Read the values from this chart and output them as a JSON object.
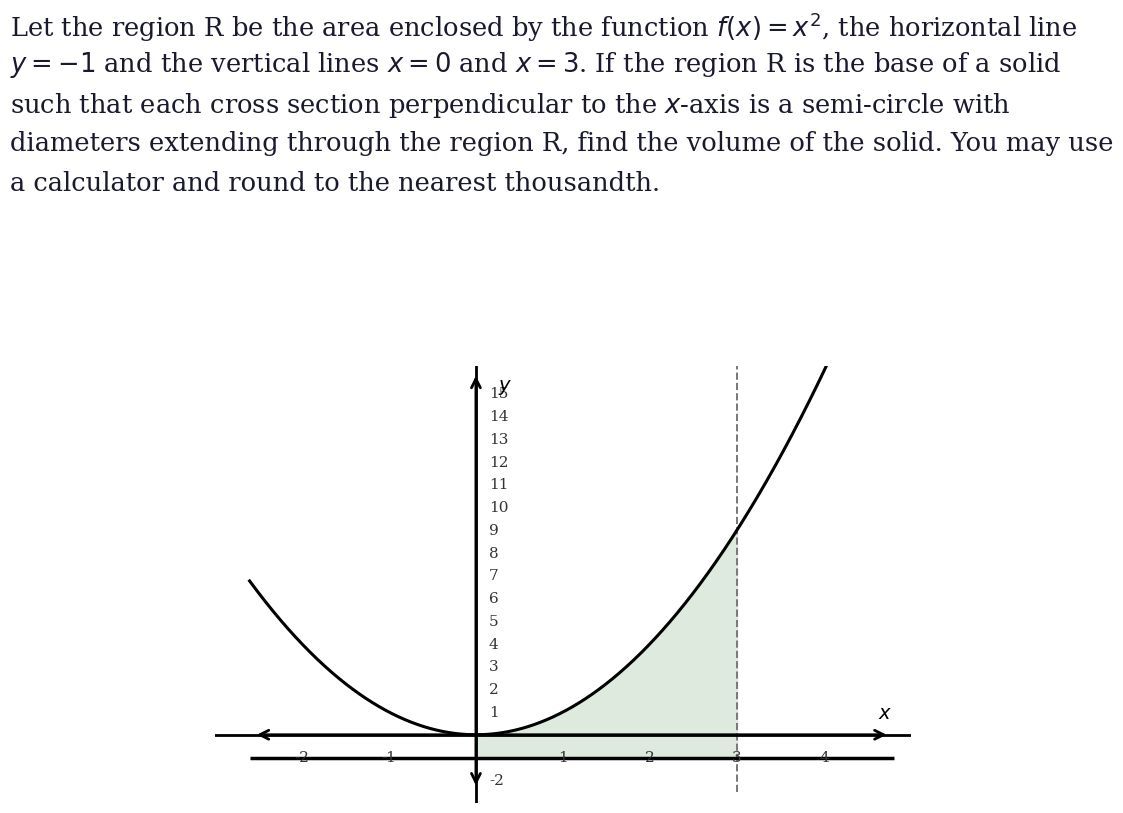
{
  "xlim": [
    -2.6,
    4.8
  ],
  "ylim": [
    -2.5,
    16.2
  ],
  "xticks": [
    -2,
    -1,
    1,
    2,
    3,
    4
  ],
  "yticks": [
    1,
    2,
    3,
    4,
    5,
    6,
    7,
    8,
    9,
    10,
    11,
    12,
    13,
    14,
    15
  ],
  "neg_yticks": [
    -2
  ],
  "shade_color": "#deeade",
  "curve_color": "#000000",
  "dashed_line_color": "#777777",
  "hline_color": "#000000",
  "axis_color": "#000000",
  "grid_color": "#cccccc",
  "text_color": "#1a1a2e",
  "curve_linewidth": 2.2,
  "hline_linewidth": 2.5,
  "axis_linewidth": 2.0,
  "x_shade_start": 0,
  "x_shade_end": 3,
  "y_bottom": -1,
  "tick_fontsize": 11,
  "label_fontsize": 14,
  "title_fontsize": 18.5,
  "title_line1": "Let the region R be the area enclosed by the function $f(x) = x^2$, the horizontal line",
  "title_line2": "$y = -1$ and the vertical lines $x = 0$ and $x = 3$. If the region R is the base of a solid",
  "title_line3": "such that each cross section perpendicular to the $x$-axis is a semi-circle with",
  "title_line4": "diameters extending through the region R, find the volume of the solid. You may use",
  "title_line5": "a calculator and round to the nearest thousandth."
}
